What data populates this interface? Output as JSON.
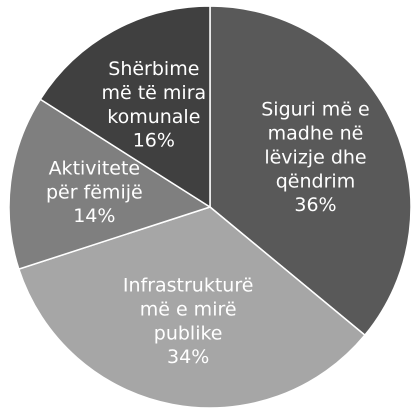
{
  "chart_data": {
    "type": "pie",
    "categories": [
      "Siguri më e madhe në lëvizje dhe qëndrim",
      "Infrastrukturë më e mirë publike",
      "Aktivitete për fëmijë",
      "Shërbime më të mira komunale"
    ],
    "values": [
      36,
      34,
      14,
      16
    ],
    "value_labels": [
      "36%",
      "34%",
      "14%",
      "16%"
    ],
    "colors": [
      "#595959",
      "#a6a6a6",
      "#7f7f7f",
      "#404040"
    ]
  }
}
